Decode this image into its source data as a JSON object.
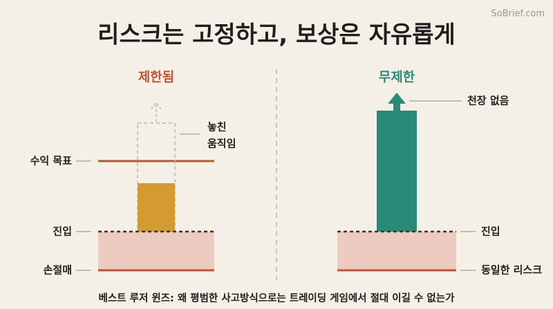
{
  "header": {
    "title": "리스크는 고정하고, 보상은 자유롭게",
    "watermark": "SoBrief.com"
  },
  "left": {
    "heading": "제한됨",
    "target_label": "수익 목표",
    "entry_label": "진입",
    "stop_label": "손절매",
    "missed_label": [
      "놓친",
      "움직임"
    ]
  },
  "right": {
    "heading": "무제한",
    "ceiling_label": "천장 없음",
    "entry_label": "진입",
    "risk_label": "동일한 리스크"
  },
  "footer": {
    "caption": "베스트 루저 윈즈: 왜 평범한 사고방식으로는 트레이딩 게임에서 절대 이길 수 없는가"
  }
}
